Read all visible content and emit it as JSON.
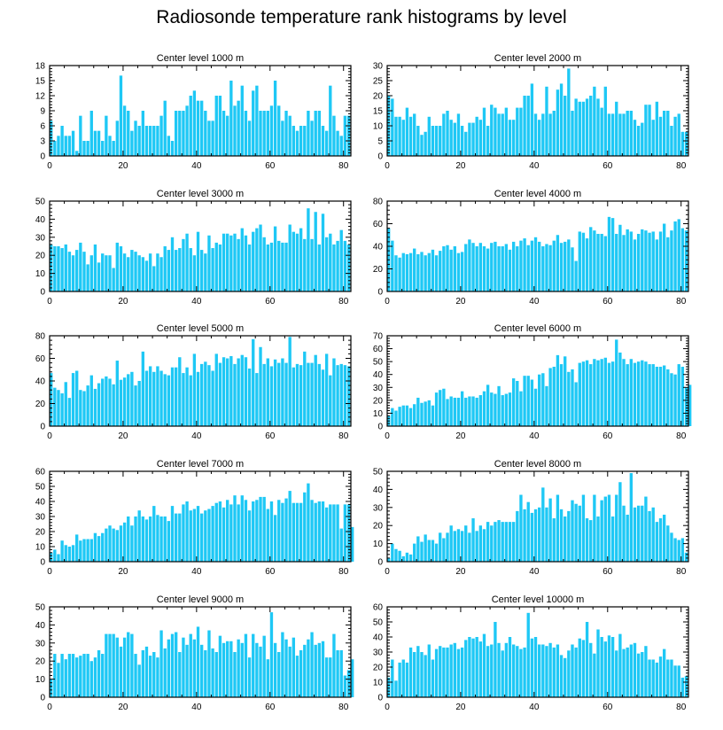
{
  "title": "Radiosonde temperature rank histograms by level",
  "bar_color": "#1ec8f5",
  "chart_data": [
    {
      "type": "bar",
      "title": "Center level 1000 m",
      "x_start": 0,
      "xlim": [
        0,
        82
      ],
      "ylim": [
        0,
        18
      ],
      "yticks": [
        0,
        3,
        6,
        9,
        12,
        15,
        18
      ],
      "xticks": [
        0,
        20,
        40,
        60,
        80
      ],
      "values": [
        7,
        3,
        4,
        6,
        4,
        4,
        5,
        1,
        8,
        3,
        3,
        9,
        5,
        5,
        3,
        8,
        4,
        3,
        7,
        16,
        10,
        9,
        5,
        7,
        6,
        9,
        6,
        6,
        6,
        6,
        8,
        11,
        4,
        3,
        9,
        9,
        9,
        10,
        12,
        13,
        11,
        11,
        9,
        7,
        7,
        12,
        12,
        9,
        8,
        15,
        10,
        11,
        14,
        9,
        7,
        13,
        14,
        9,
        9,
        9,
        10,
        15,
        10,
        7,
        9,
        8,
        6,
        5,
        6,
        6,
        9,
        7,
        9,
        9,
        6,
        5,
        14,
        8,
        5,
        4,
        8,
        8
      ]
    },
    {
      "type": "bar",
      "title": "Center level 2000 m",
      "x_start": 0,
      "xlim": [
        0,
        82
      ],
      "ylim": [
        0,
        30
      ],
      "yticks": [
        0,
        5,
        10,
        15,
        20,
        25,
        30
      ],
      "xticks": [
        0,
        20,
        40,
        60,
        80
      ],
      "values": [
        20,
        19,
        13,
        13,
        12,
        16,
        13,
        14,
        10,
        7,
        8,
        13,
        10,
        10,
        10,
        14,
        15,
        12,
        11,
        14,
        10,
        8,
        11,
        11,
        13,
        12,
        16,
        10,
        17,
        16,
        14,
        14,
        16,
        12,
        12,
        16,
        16,
        20,
        20,
        24,
        14,
        12,
        14,
        23,
        14,
        15,
        22,
        24,
        20,
        29,
        15,
        19,
        18,
        18,
        19,
        20,
        23,
        19,
        16,
        23,
        14,
        14,
        18,
        14,
        14,
        15,
        15,
        12,
        10,
        11,
        17,
        17,
        12,
        18,
        13,
        15,
        15,
        10,
        13,
        14,
        8,
        8
      ]
    },
    {
      "type": "bar",
      "title": "Center level 3000 m",
      "x_start": 0,
      "xlim": [
        0,
        82
      ],
      "ylim": [
        0,
        50
      ],
      "yticks": [
        0,
        10,
        20,
        30,
        40,
        50
      ],
      "xticks": [
        0,
        20,
        40,
        60,
        80
      ],
      "values": [
        26,
        25,
        25,
        24,
        26,
        22,
        20,
        23,
        27,
        22,
        15,
        20,
        26,
        16,
        21,
        20,
        20,
        13,
        27,
        25,
        21,
        19,
        23,
        22,
        20,
        19,
        17,
        21,
        14,
        21,
        19,
        25,
        23,
        30,
        23,
        24,
        29,
        32,
        24,
        20,
        33,
        23,
        21,
        31,
        24,
        27,
        26,
        32,
        32,
        31,
        32,
        29,
        35,
        31,
        26,
        33,
        35,
        37,
        30,
        26,
        27,
        36,
        28,
        27,
        27,
        37,
        33,
        32,
        35,
        29,
        46,
        29,
        44,
        26,
        43,
        30,
        32,
        26,
        28,
        34,
        28,
        26
      ]
    },
    {
      "type": "bar",
      "title": "Center level 4000 m",
      "x_start": 0,
      "xlim": [
        0,
        82
      ],
      "ylim": [
        0,
        80
      ],
      "yticks": [
        0,
        20,
        40,
        60,
        80
      ],
      "xticks": [
        0,
        20,
        40,
        60,
        80
      ],
      "values": [
        56,
        45,
        32,
        30,
        34,
        33,
        34,
        38,
        33,
        35,
        32,
        34,
        37,
        32,
        36,
        40,
        41,
        37,
        40,
        34,
        35,
        42,
        46,
        43,
        40,
        43,
        40,
        38,
        43,
        44,
        40,
        40,
        42,
        37,
        44,
        40,
        45,
        47,
        41,
        45,
        48,
        44,
        40,
        42,
        41,
        45,
        50,
        43,
        44,
        46,
        39,
        27,
        53,
        52,
        47,
        57,
        54,
        51,
        51,
        49,
        66,
        65,
        51,
        59,
        50,
        55,
        53,
        46,
        51,
        55,
        54,
        52,
        53,
        46,
        53,
        60,
        48,
        54,
        62,
        64,
        56,
        54
      ]
    },
    {
      "type": "bar",
      "title": "Center level 5000 m",
      "x_start": 0,
      "xlim": [
        0,
        82
      ],
      "ylim": [
        0,
        80
      ],
      "yticks": [
        0,
        20,
        40,
        60,
        80
      ],
      "xticks": [
        0,
        20,
        40,
        60,
        80
      ],
      "values": [
        47,
        34,
        32,
        29,
        39,
        25,
        47,
        49,
        32,
        31,
        36,
        45,
        33,
        38,
        42,
        44,
        42,
        37,
        58,
        41,
        43,
        46,
        48,
        36,
        40,
        66,
        49,
        53,
        48,
        53,
        49,
        46,
        45,
        52,
        52,
        61,
        47,
        52,
        45,
        64,
        48,
        55,
        57,
        54,
        49,
        64,
        56,
        61,
        60,
        62,
        55,
        60,
        63,
        61,
        51,
        77,
        47,
        70,
        55,
        60,
        53,
        59,
        56,
        60,
        56,
        79,
        52,
        55,
        54,
        66,
        56,
        56,
        63,
        55,
        50,
        64,
        45,
        60,
        54,
        55,
        54,
        53
      ]
    },
    {
      "type": "bar",
      "title": "Center level 6000 m",
      "x_start": 0,
      "xlim": [
        0,
        82
      ],
      "ylim": [
        0,
        70
      ],
      "yticks": [
        0,
        10,
        20,
        30,
        40,
        50,
        60,
        70
      ],
      "xticks": [
        0,
        20,
        40,
        60,
        80
      ],
      "values": [
        8,
        14,
        12,
        15,
        16,
        16,
        14,
        17,
        22,
        18,
        19,
        20,
        16,
        26,
        28,
        29,
        21,
        23,
        22,
        22,
        27,
        22,
        23,
        23,
        22,
        24,
        27,
        32,
        26,
        25,
        31,
        24,
        25,
        26,
        37,
        35,
        27,
        39,
        39,
        36,
        29,
        40,
        41,
        31,
        45,
        46,
        55,
        48,
        54,
        42,
        44,
        34,
        49,
        50,
        51,
        48,
        52,
        51,
        52,
        53,
        49,
        50,
        67,
        57,
        52,
        48,
        52,
        49,
        50,
        51,
        50,
        48,
        48,
        46,
        46,
        47,
        44,
        41,
        40,
        48,
        46,
        30,
        32
      ]
    },
    {
      "type": "bar",
      "title": "Center level 7000 m",
      "x_start": 0,
      "xlim": [
        0,
        82
      ],
      "ylim": [
        0,
        60
      ],
      "yticks": [
        0,
        10,
        20,
        30,
        40,
        50,
        60
      ],
      "xticks": [
        0,
        20,
        40,
        60,
        80
      ],
      "values": [
        6,
        8,
        5,
        14,
        11,
        10,
        11,
        18,
        14,
        15,
        15,
        15,
        19,
        17,
        19,
        22,
        24,
        22,
        21,
        24,
        26,
        30,
        24,
        30,
        34,
        30,
        28,
        30,
        37,
        31,
        30,
        30,
        27,
        37,
        32,
        32,
        38,
        40,
        34,
        35,
        37,
        32,
        34,
        35,
        37,
        39,
        40,
        36,
        41,
        38,
        44,
        38,
        44,
        41,
        34,
        40,
        41,
        43,
        43,
        35,
        40,
        31,
        41,
        39,
        42,
        47,
        39,
        39,
        39,
        46,
        52,
        41,
        39,
        40,
        40,
        36,
        38,
        38,
        38,
        22,
        38,
        38,
        23
      ]
    },
    {
      "type": "bar",
      "title": "Center level 8000 m",
      "x_start": 0,
      "xlim": [
        0,
        82
      ],
      "ylim": [
        0,
        50
      ],
      "yticks": [
        0,
        10,
        20,
        30,
        40,
        50
      ],
      "xticks": [
        0,
        20,
        40,
        60,
        80
      ],
      "values": [
        2,
        10,
        7,
        6,
        3,
        5,
        4,
        10,
        14,
        11,
        15,
        12,
        12,
        10,
        16,
        13,
        16,
        20,
        17,
        18,
        17,
        20,
        16,
        24,
        17,
        20,
        18,
        22,
        20,
        22,
        23,
        22,
        22,
        22,
        22,
        28,
        37,
        29,
        33,
        27,
        29,
        30,
        41,
        30,
        35,
        24,
        37,
        29,
        25,
        28,
        34,
        32,
        31,
        37,
        24,
        23,
        37,
        25,
        34,
        36,
        37,
        25,
        37,
        44,
        31,
        26,
        49,
        30,
        31,
        31,
        36,
        28,
        30,
        22,
        24,
        26,
        20,
        16,
        13,
        12,
        13,
        5
      ]
    },
    {
      "type": "bar",
      "title": "Center level 9000 m",
      "x_start": 0,
      "xlim": [
        0,
        82
      ],
      "ylim": [
        0,
        50
      ],
      "yticks": [
        0,
        10,
        20,
        30,
        40,
        50
      ],
      "xticks": [
        0,
        20,
        40,
        60,
        80
      ],
      "values": [
        10,
        24,
        19,
        24,
        21,
        24,
        24,
        22,
        23,
        24,
        24,
        20,
        22,
        26,
        24,
        35,
        35,
        35,
        33,
        28,
        33,
        36,
        35,
        24,
        18,
        26,
        28,
        23,
        25,
        22,
        37,
        27,
        32,
        35,
        36,
        25,
        33,
        29,
        35,
        32,
        39,
        29,
        26,
        37,
        27,
        25,
        34,
        30,
        31,
        31,
        25,
        32,
        30,
        35,
        22,
        35,
        30,
        28,
        34,
        21,
        47,
        30,
        25,
        36,
        32,
        28,
        33,
        23,
        26,
        29,
        32,
        36,
        29,
        30,
        31,
        22,
        22,
        35,
        26,
        26,
        12,
        15,
        21
      ]
    },
    {
      "type": "bar",
      "title": "Center level 10000 m",
      "x_start": 0,
      "xlim": [
        0,
        82
      ],
      "ylim": [
        0,
        60
      ],
      "yticks": [
        0,
        10,
        20,
        30,
        40,
        50,
        60
      ],
      "xticks": [
        0,
        20,
        40,
        60,
        80
      ],
      "values": [
        13,
        25,
        11,
        23,
        25,
        23,
        33,
        30,
        34,
        30,
        28,
        35,
        25,
        32,
        34,
        33,
        33,
        35,
        36,
        32,
        33,
        38,
        40,
        39,
        40,
        37,
        42,
        34,
        35,
        50,
        36,
        31,
        36,
        40,
        35,
        34,
        32,
        33,
        56,
        39,
        40,
        35,
        35,
        34,
        36,
        33,
        35,
        28,
        26,
        31,
        35,
        33,
        39,
        38,
        50,
        36,
        29,
        45,
        40,
        37,
        41,
        40,
        31,
        42,
        32,
        33,
        35,
        36,
        29,
        30,
        34,
        25,
        25,
        23,
        27,
        32,
        25,
        25,
        21,
        21,
        13,
        14
      ]
    }
  ]
}
